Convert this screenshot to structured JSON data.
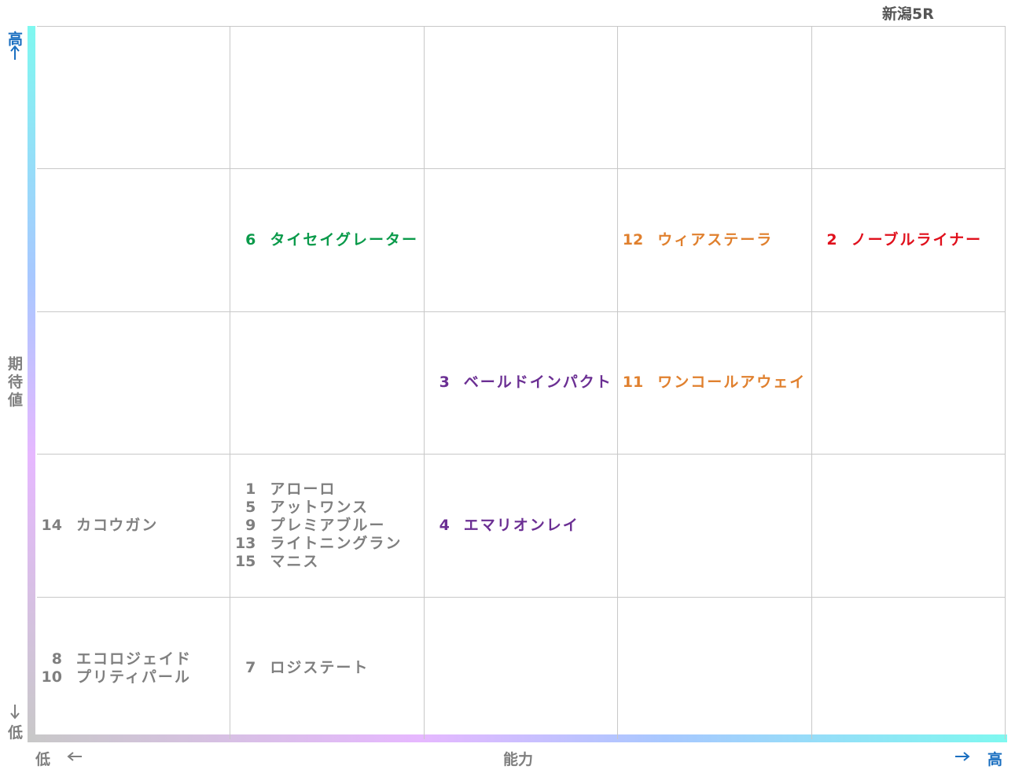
{
  "title": "新潟5R",
  "y_axis": {
    "high": "高",
    "label": "期待値",
    "low": "低"
  },
  "x_axis": {
    "low": "低",
    "label": "能力",
    "high": "高"
  },
  "grid": {
    "rows": [
      [
        [],
        [],
        [],
        [],
        []
      ],
      [
        [],
        [
          {
            "number": 6,
            "name": "タイセイグレーター",
            "color": "#0a9a4a"
          }
        ],
        [],
        [
          {
            "number": 12,
            "name": "ウィアステーラ",
            "color": "#e0802e"
          }
        ],
        [
          {
            "number": 2,
            "name": "ノーブルライナー",
            "color": "#e0101c"
          }
        ]
      ],
      [
        [],
        [],
        [
          {
            "number": 3,
            "name": "ベールドインパクト",
            "color": "#6b2f93"
          }
        ],
        [
          {
            "number": 11,
            "name": "ワンコールアウェイ",
            "color": "#e0802e"
          }
        ],
        []
      ],
      [
        [
          {
            "number": 14,
            "name": "カコウガン",
            "color": "#7f7f7f"
          }
        ],
        [
          {
            "number": 1,
            "name": "アローロ",
            "color": "#7f7f7f"
          },
          {
            "number": 5,
            "name": "アットワンス",
            "color": "#7f7f7f"
          },
          {
            "number": 9,
            "name": "プレミアブルー",
            "color": "#7f7f7f"
          },
          {
            "number": 13,
            "name": "ライトニングラン",
            "color": "#7f7f7f"
          },
          {
            "number": 15,
            "name": "マニス",
            "color": "#7f7f7f"
          }
        ],
        [
          {
            "number": 4,
            "name": "エマリオンレイ",
            "color": "#6b2f93"
          }
        ],
        [],
        []
      ],
      [
        [
          {
            "number": 8,
            "name": "エコロジェイド",
            "color": "#7f7f7f"
          },
          {
            "number": 10,
            "name": "プリティパール",
            "color": "#7f7f7f"
          }
        ],
        [
          {
            "number": 7,
            "name": "ロジステート",
            "color": "#7f7f7f"
          }
        ],
        [],
        [],
        []
      ]
    ]
  }
}
